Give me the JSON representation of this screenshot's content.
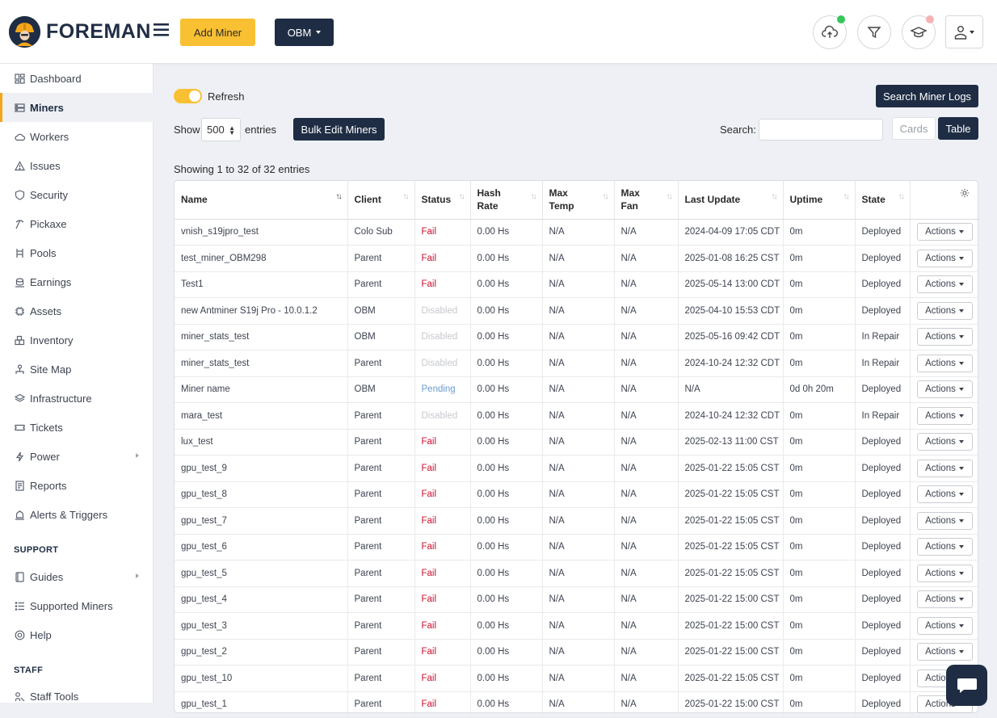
{
  "app": {
    "name": "FOREMAN"
  },
  "header": {
    "add_miner": "Add Miner",
    "obm_dropdown": "OBM",
    "colors": {
      "accent": "#f9c033",
      "navy": "#1f2d44",
      "online": "#34c759",
      "alert": "#f4b4b4"
    }
  },
  "sidebar": {
    "items": [
      {
        "label": "Dashboard",
        "icon": "grid-icon"
      },
      {
        "label": "Miners",
        "icon": "server-icon"
      },
      {
        "label": "Workers",
        "icon": "cloud-icon"
      },
      {
        "label": "Issues",
        "icon": "warning-icon"
      },
      {
        "label": "Security",
        "icon": "shield-icon"
      },
      {
        "label": "Pickaxe",
        "icon": "pickaxe-icon"
      },
      {
        "label": "Pools",
        "icon": "pools-icon"
      },
      {
        "label": "Earnings",
        "icon": "coins-icon"
      },
      {
        "label": "Assets",
        "icon": "chip-icon"
      },
      {
        "label": "Inventory",
        "icon": "boxes-icon"
      },
      {
        "label": "Site Map",
        "icon": "sitemap-icon"
      },
      {
        "label": "Infrastructure",
        "icon": "layers-icon"
      },
      {
        "label": "Tickets",
        "icon": "ticket-icon"
      },
      {
        "label": "Power",
        "icon": "bolt-icon"
      },
      {
        "label": "Reports",
        "icon": "report-icon"
      },
      {
        "label": "Alerts & Triggers",
        "icon": "alert-icon"
      }
    ],
    "support_heading": "SUPPORT",
    "support_items": [
      {
        "label": "Guides",
        "icon": "book-icon"
      },
      {
        "label": "Supported Miners",
        "icon": "list-icon"
      },
      {
        "label": "Help",
        "icon": "lifebuoy-icon"
      }
    ],
    "staff_heading": "STAFF",
    "staff_items": [
      {
        "label": "Staff Tools",
        "icon": "tools-icon"
      }
    ]
  },
  "controls": {
    "refresh_label": "Refresh",
    "search_logs": "Search Miner Logs",
    "show_label": "Show",
    "show_value": "500",
    "entries_label": "entries",
    "bulk_edit": "Bulk Edit Miners",
    "search_label": "Search:",
    "search_value": "",
    "view_cards": "Cards",
    "view_table": "Table",
    "showing": "Showing 1 to 32 of 32 entries"
  },
  "table": {
    "columns": [
      "Name",
      "Client",
      "Status",
      "Hash Rate",
      "Max Temp",
      "Max Fan",
      "Last Update",
      "Uptime",
      "State",
      ""
    ],
    "actions_label": "Actions",
    "rows": [
      {
        "name": "vnish_s19jpro_test",
        "client": "Colo Sub",
        "status": "Fail",
        "hash": "0.00 Hs",
        "temp": "N/A",
        "fan": "N/A",
        "update": "2024-04-09 17:05 CDT",
        "uptime": "0m",
        "state": "Deployed"
      },
      {
        "name": "test_miner_OBM298",
        "client": "Parent",
        "status": "Fail",
        "hash": "0.00 Hs",
        "temp": "N/A",
        "fan": "N/A",
        "update": "2025-01-08 16:25 CST",
        "uptime": "0m",
        "state": "Deployed"
      },
      {
        "name": "Test1",
        "client": "Parent",
        "status": "Fail",
        "hash": "0.00 Hs",
        "temp": "N/A",
        "fan": "N/A",
        "update": "2025-05-14 13:00 CDT",
        "uptime": "0m",
        "state": "Deployed"
      },
      {
        "name": "new Antminer S19j Pro - 10.0.1.2",
        "client": "OBM",
        "status": "Disabled",
        "hash": "0.00 Hs",
        "temp": "N/A",
        "fan": "N/A",
        "update": "2025-04-10 15:53 CDT",
        "uptime": "0m",
        "state": "Deployed"
      },
      {
        "name": "miner_stats_test",
        "client": "OBM",
        "status": "Disabled",
        "hash": "0.00 Hs",
        "temp": "N/A",
        "fan": "N/A",
        "update": "2025-05-16 09:42 CDT",
        "uptime": "0m",
        "state": "In Repair"
      },
      {
        "name": "miner_stats_test",
        "client": "Parent",
        "status": "Disabled",
        "hash": "0.00 Hs",
        "temp": "N/A",
        "fan": "N/A",
        "update": "2024-10-24 12:32 CDT",
        "uptime": "0m",
        "state": "In Repair"
      },
      {
        "name": "Miner name",
        "client": "OBM",
        "status": "Pending",
        "hash": "0.00 Hs",
        "temp": "N/A",
        "fan": "N/A",
        "update": "N/A",
        "uptime": "0d 0h 20m",
        "state": "Deployed"
      },
      {
        "name": "mara_test",
        "client": "Parent",
        "status": "Disabled",
        "hash": "0.00 Hs",
        "temp": "N/A",
        "fan": "N/A",
        "update": "2024-10-24 12:32 CDT",
        "uptime": "0m",
        "state": "In Repair"
      },
      {
        "name": "lux_test",
        "client": "Parent",
        "status": "Fail",
        "hash": "0.00 Hs",
        "temp": "N/A",
        "fan": "N/A",
        "update": "2025-02-13 11:00 CST",
        "uptime": "0m",
        "state": "Deployed"
      },
      {
        "name": "gpu_test_9",
        "client": "Parent",
        "status": "Fail",
        "hash": "0.00 Hs",
        "temp": "N/A",
        "fan": "N/A",
        "update": "2025-01-22 15:05 CST",
        "uptime": "0m",
        "state": "Deployed"
      },
      {
        "name": "gpu_test_8",
        "client": "Parent",
        "status": "Fail",
        "hash": "0.00 Hs",
        "temp": "N/A",
        "fan": "N/A",
        "update": "2025-01-22 15:05 CST",
        "uptime": "0m",
        "state": "Deployed"
      },
      {
        "name": "gpu_test_7",
        "client": "Parent",
        "status": "Fail",
        "hash": "0.00 Hs",
        "temp": "N/A",
        "fan": "N/A",
        "update": "2025-01-22 15:05 CST",
        "uptime": "0m",
        "state": "Deployed"
      },
      {
        "name": "gpu_test_6",
        "client": "Parent",
        "status": "Fail",
        "hash": "0.00 Hs",
        "temp": "N/A",
        "fan": "N/A",
        "update": "2025-01-22 15:05 CST",
        "uptime": "0m",
        "state": "Deployed"
      },
      {
        "name": "gpu_test_5",
        "client": "Parent",
        "status": "Fail",
        "hash": "0.00 Hs",
        "temp": "N/A",
        "fan": "N/A",
        "update": "2025-01-22 15:05 CST",
        "uptime": "0m",
        "state": "Deployed"
      },
      {
        "name": "gpu_test_4",
        "client": "Parent",
        "status": "Fail",
        "hash": "0.00 Hs",
        "temp": "N/A",
        "fan": "N/A",
        "update": "2025-01-22 15:00 CST",
        "uptime": "0m",
        "state": "Deployed"
      },
      {
        "name": "gpu_test_3",
        "client": "Parent",
        "status": "Fail",
        "hash": "0.00 Hs",
        "temp": "N/A",
        "fan": "N/A",
        "update": "2025-01-22 15:00 CST",
        "uptime": "0m",
        "state": "Deployed"
      },
      {
        "name": "gpu_test_2",
        "client": "Parent",
        "status": "Fail",
        "hash": "0.00 Hs",
        "temp": "N/A",
        "fan": "N/A",
        "update": "2025-01-22 15:00 CST",
        "uptime": "0m",
        "state": "Deployed"
      },
      {
        "name": "gpu_test_10",
        "client": "Parent",
        "status": "Fail",
        "hash": "0.00 Hs",
        "temp": "N/A",
        "fan": "N/A",
        "update": "2025-01-22 15:05 CST",
        "uptime": "0m",
        "state": "Deployed"
      },
      {
        "name": "gpu_test_1",
        "client": "Parent",
        "status": "Fail",
        "hash": "0.00 Hs",
        "temp": "N/A",
        "fan": "N/A",
        "update": "2025-01-22 15:00 CST",
        "uptime": "0m",
        "state": "Deployed"
      }
    ]
  }
}
